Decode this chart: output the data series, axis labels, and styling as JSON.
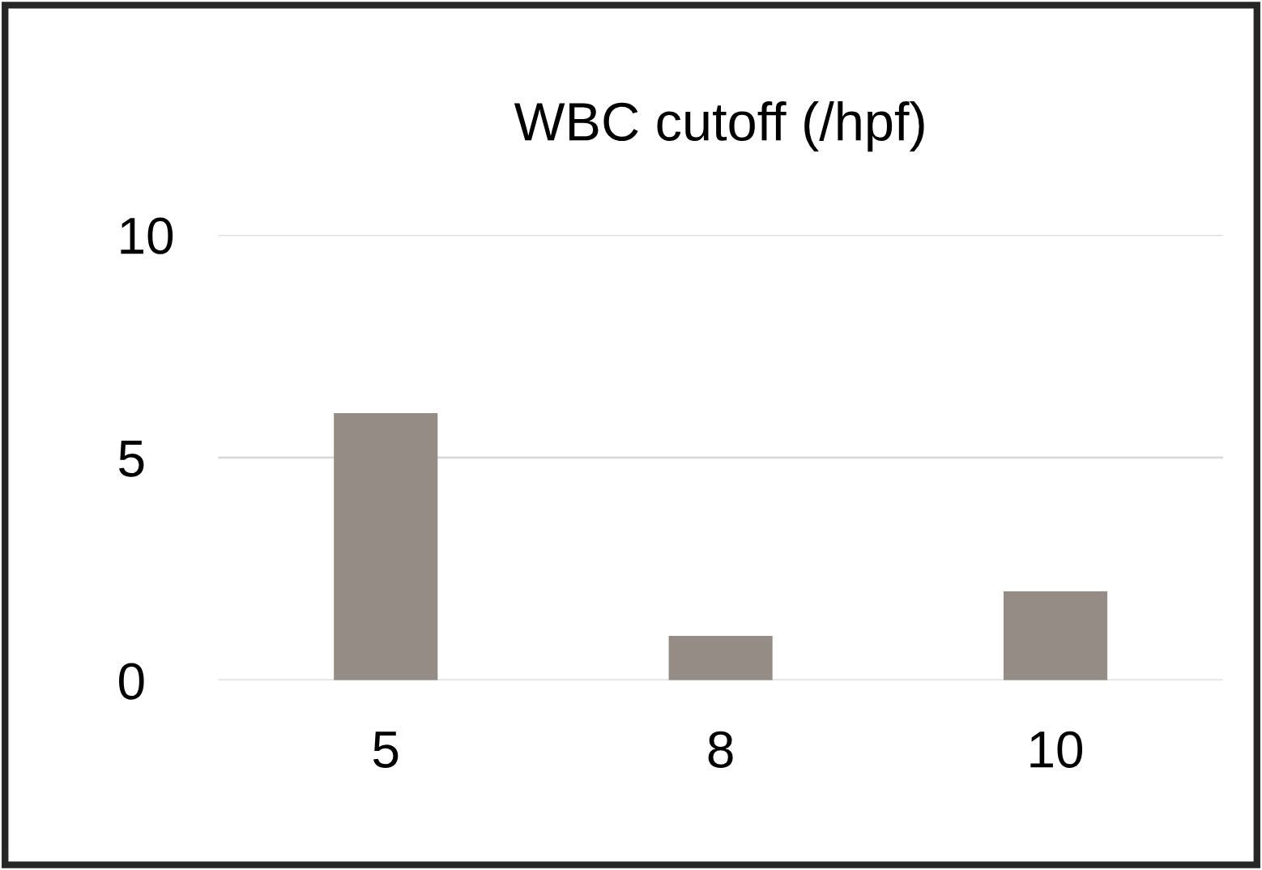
{
  "chart_data": {
    "type": "bar",
    "title": "WBC cutoff (/hpf)",
    "categories": [
      "5",
      "8",
      "10"
    ],
    "values": [
      6,
      1,
      2
    ],
    "color": "#968c86",
    "ylim": [
      0,
      10
    ],
    "yticks": [
      0,
      5,
      10
    ],
    "grid": "y",
    "legend": false
  }
}
